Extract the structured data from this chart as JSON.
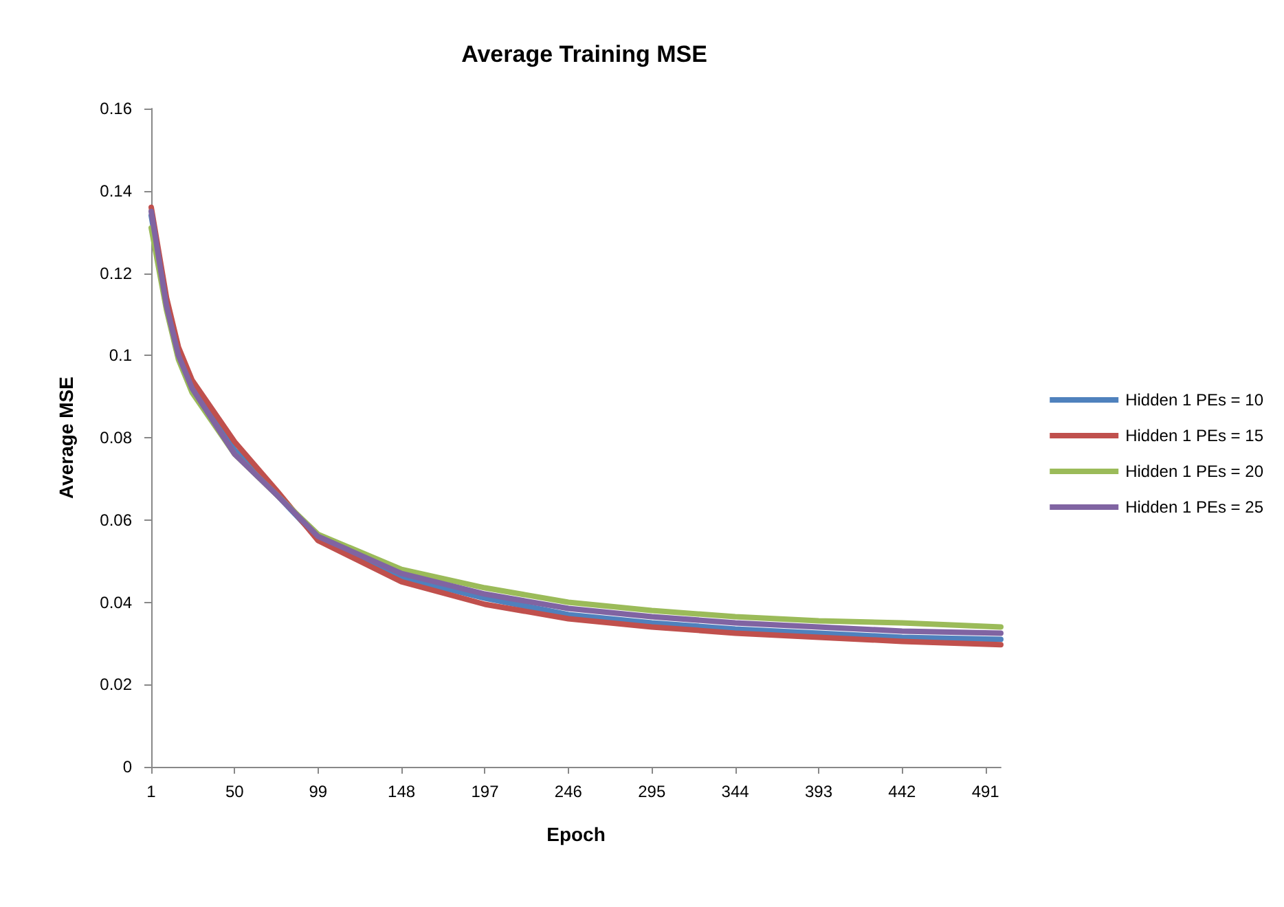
{
  "chart_data": {
    "type": "line",
    "title": "Average Training MSE",
    "xlabel": "Epoch",
    "ylabel": "Average MSE",
    "x": [
      1,
      10,
      17,
      25,
      50,
      75,
      99,
      148,
      197,
      246,
      295,
      344,
      393,
      442,
      500
    ],
    "series": [
      {
        "name": "Hidden 1 PEs = 10",
        "color": "#4f81bd",
        "values": [
          0.134,
          0.112,
          0.1,
          0.092,
          0.077,
          0.066,
          0.0555,
          0.046,
          0.041,
          0.037,
          0.035,
          0.0335,
          0.0325,
          0.0315,
          0.031
        ]
      },
      {
        "name": "Hidden 1 PEs = 15",
        "color": "#c0504d",
        "values": [
          0.136,
          0.114,
          0.102,
          0.094,
          0.079,
          0.067,
          0.055,
          0.045,
          0.0395,
          0.036,
          0.034,
          0.0325,
          0.0315,
          0.0305,
          0.0297
        ]
      },
      {
        "name": "Hidden 1 PEs = 20",
        "color": "#9bbb59",
        "values": [
          0.131,
          0.111,
          0.099,
          0.091,
          0.076,
          0.066,
          0.0565,
          0.048,
          0.0435,
          0.04,
          0.038,
          0.0365,
          0.0355,
          0.035,
          0.034
        ]
      },
      {
        "name": "Hidden 1 PEs = 25",
        "color": "#8064a2",
        "values": [
          0.135,
          0.112,
          0.1,
          0.092,
          0.076,
          0.066,
          0.056,
          0.047,
          0.042,
          0.0385,
          0.0365,
          0.035,
          0.034,
          0.033,
          0.0325
        ]
      }
    ],
    "xlim": [
      1,
      500
    ],
    "xticks": [
      1,
      50,
      99,
      148,
      197,
      246,
      295,
      344,
      393,
      442,
      491
    ],
    "ylim": [
      0,
      0.16
    ],
    "yticks": [
      0,
      0.02,
      0.04,
      0.06,
      0.08,
      0.1,
      0.12,
      0.14,
      0.16
    ],
    "grid": false,
    "legend": "right",
    "marker": "none",
    "line_style": "solid"
  }
}
